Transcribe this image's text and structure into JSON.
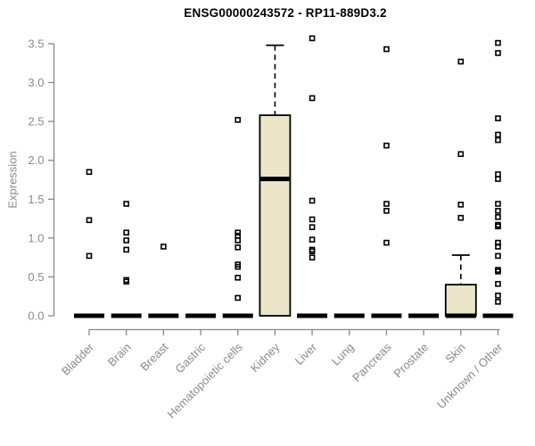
{
  "chart_data": {
    "type": "boxplot",
    "title": "ENSG00000243572 - RP11-889D3.2",
    "ylabel": "Expression",
    "ylim": [
      0,
      3.5
    ],
    "ytick_labels": [
      "0.0",
      "0.5",
      "1.0",
      "1.5",
      "2.0",
      "2.5",
      "3.0",
      "3.5"
    ],
    "grid": "off",
    "legend": "none",
    "categories": [
      "Bladder",
      "Brain",
      "Breast",
      "Gastric",
      "Hematopoietic cells",
      "Kidney",
      "Liver",
      "Lung",
      "Pancreas",
      "Prostate",
      "Skin",
      "Unknown / Other"
    ],
    "series": [
      {
        "category": "Bladder",
        "box": {
          "q1": 0,
          "median": 0,
          "q3": 0,
          "whisker_low": 0,
          "whisker_high": 0
        },
        "points": [
          1.85,
          1.23,
          0.77
        ]
      },
      {
        "category": "Brain",
        "box": {
          "q1": 0,
          "median": 0,
          "q3": 0,
          "whisker_low": 0,
          "whisker_high": 0
        },
        "points": [
          1.44,
          1.07,
          0.97,
          0.85,
          0.46,
          0.44
        ]
      },
      {
        "category": "Breast",
        "box": {
          "q1": 0,
          "median": 0,
          "q3": 0,
          "whisker_low": 0,
          "whisker_high": 0
        },
        "points": [
          0.89
        ]
      },
      {
        "category": "Gastric",
        "box": {
          "q1": 0,
          "median": 0,
          "q3": 0,
          "whisker_low": 0,
          "whisker_high": 0
        },
        "points": []
      },
      {
        "category": "Hematopoietic cells",
        "box": {
          "q1": 0,
          "median": 0,
          "q3": 0,
          "whisker_low": 0,
          "whisker_high": 0
        },
        "points": [
          2.52,
          1.07,
          1.03,
          0.97,
          0.88,
          0.66,
          0.63,
          0.49,
          0.23
        ]
      },
      {
        "category": "Kidney",
        "box": {
          "q1": 0,
          "median": 1.76,
          "q3": 2.58,
          "whisker_low": 0,
          "whisker_high": 3.48
        },
        "points": []
      },
      {
        "category": "Liver",
        "box": {
          "q1": 0,
          "median": 0,
          "q3": 0,
          "whisker_low": 0,
          "whisker_high": 0
        },
        "points": [
          3.57,
          2.8,
          1.48,
          1.24,
          1.14,
          0.98,
          0.85,
          0.83,
          0.75
        ]
      },
      {
        "category": "Lung",
        "box": {
          "q1": 0,
          "median": 0,
          "q3": 0,
          "whisker_low": 0,
          "whisker_high": 0
        },
        "points": []
      },
      {
        "category": "Pancreas",
        "box": {
          "q1": 0,
          "median": 0,
          "q3": 0,
          "whisker_low": 0,
          "whisker_high": 0
        },
        "points": [
          3.43,
          2.19,
          1.44,
          1.35,
          0.94
        ]
      },
      {
        "category": "Prostate",
        "box": {
          "q1": 0,
          "median": 0,
          "q3": 0,
          "whisker_low": 0,
          "whisker_high": 0
        },
        "points": []
      },
      {
        "category": "Skin",
        "box": {
          "q1": 0,
          "median": 0,
          "q3": 0.4,
          "whisker_low": 0,
          "whisker_high": 0.78
        },
        "points": [
          3.27,
          2.08,
          1.43,
          1.26
        ]
      },
      {
        "category": "Unknown / Other",
        "box": {
          "q1": 0,
          "median": 0,
          "q3": 0,
          "whisker_low": 0,
          "whisker_high": 0
        },
        "points": [
          3.51,
          3.38,
          2.54,
          2.33,
          2.26,
          1.82,
          1.76,
          1.44,
          1.35,
          1.27,
          1.17,
          1.15,
          0.94,
          0.89,
          0.77,
          0.59,
          0.57,
          0.41,
          0.26,
          0.18
        ]
      }
    ],
    "colors": {
      "box_fill": "#ebe5ca",
      "box_stroke": "#000000",
      "median": "#000000",
      "point_stroke": "#000000",
      "axis": "#888888",
      "tick_label": "#8a8a8a",
      "title": "#000000",
      "background": "#ffffff"
    }
  }
}
